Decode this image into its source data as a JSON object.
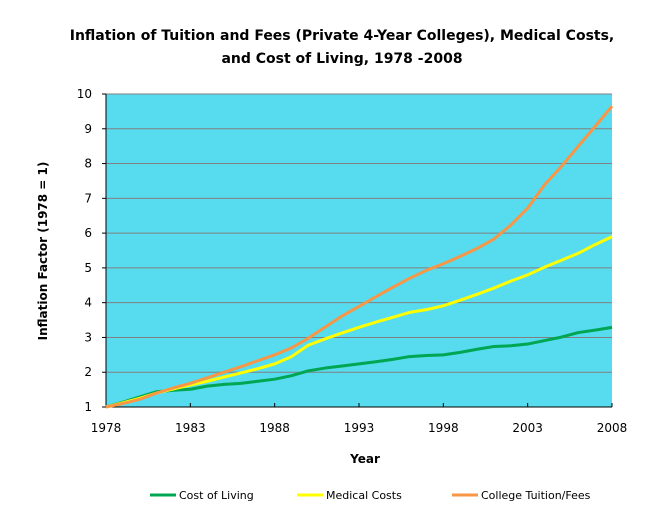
{
  "chart_data": {
    "type": "line",
    "title": "Inflation of Tuition  and Fees (Private 4-Year Colleges), Medical Costs,",
    "title_line2": "and Cost of Living, 1978 -2008",
    "xlabel": "Year",
    "ylabel": "Inflation Factor (1978 = 1)",
    "xlim": [
      1978,
      2008
    ],
    "ylim": [
      1,
      10
    ],
    "x_ticks": [
      "1978",
      "1983",
      "1988",
      "1993",
      "1998",
      "2003",
      "2008"
    ],
    "y_ticks": [
      "1",
      "2",
      "3",
      "4",
      "5",
      "6",
      "7",
      "8",
      "9",
      "10"
    ],
    "grid": true,
    "plot_background": "#57DBEE",
    "legend_position": "bottom",
    "x": [
      1978,
      1979,
      1980,
      1981,
      1982,
      1983,
      1984,
      1985,
      1986,
      1987,
      1988,
      1989,
      1990,
      1991,
      1992,
      1993,
      1994,
      1995,
      1996,
      1997,
      1998,
      1999,
      2000,
      2001,
      2002,
      2003,
      2004,
      2005,
      2006,
      2007,
      2008
    ],
    "series": [
      {
        "name": "Cost of Living",
        "color": "#00A651",
        "values": [
          1,
          1.14,
          1.29,
          1.44,
          1.48,
          1.51,
          1.6,
          1.65,
          1.68,
          1.74,
          1.8,
          1.9,
          2.04,
          2.12,
          2.18,
          2.24,
          2.3,
          2.37,
          2.45,
          2.48,
          2.5,
          2.57,
          2.66,
          2.74,
          2.76,
          2.81,
          2.91,
          3.01,
          3.14,
          3.21,
          3.29
        ]
      },
      {
        "name": "Medical Costs",
        "color": "#FFFF00",
        "values": [
          1,
          1.12,
          1.25,
          1.4,
          1.52,
          1.63,
          1.74,
          1.86,
          1.98,
          2.1,
          2.24,
          2.45,
          2.78,
          2.96,
          3.13,
          3.29,
          3.44,
          3.58,
          3.72,
          3.8,
          3.91,
          4.07,
          4.24,
          4.42,
          4.62,
          4.8,
          5.02,
          5.22,
          5.42,
          5.67,
          5.9
        ]
      },
      {
        "name": "College Tuition/Fees",
        "color": "#F79646",
        "values": [
          1,
          1.1,
          1.22,
          1.4,
          1.55,
          1.68,
          1.84,
          2.0,
          2.16,
          2.33,
          2.5,
          2.7,
          2.98,
          3.3,
          3.62,
          3.89,
          4.17,
          4.44,
          4.7,
          4.93,
          5.12,
          5.33,
          5.56,
          5.83,
          6.23,
          6.72,
          7.39,
          7.92,
          8.5,
          9.07,
          9.65
        ]
      }
    ]
  }
}
